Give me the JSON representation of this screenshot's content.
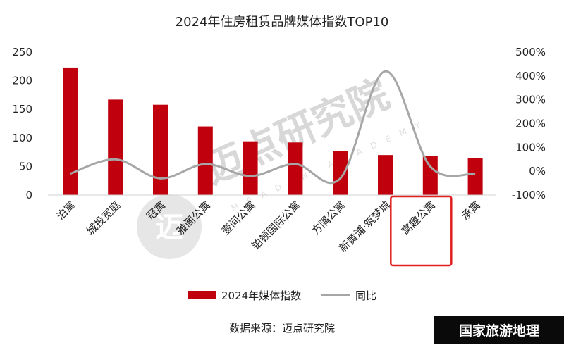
{
  "chart_data": {
    "type": "bar",
    "title": "2024年住房租赁品牌媒体指数TOP10",
    "categories": [
      "泊寓",
      "城投宽庭",
      "冠寓",
      "雅阁公寓",
      "壹间公寓",
      "铂顿国际公寓",
      "方隅公寓",
      "新黄浦·筑梦城",
      "窝趣公寓",
      "承寓"
    ],
    "series": [
      {
        "name": "2024年媒体指数",
        "type": "bar",
        "axis": "left",
        "color": "#c0000c",
        "values": [
          223,
          167,
          158,
          120,
          94,
          92,
          77,
          70,
          68,
          65
        ]
      },
      {
        "name": "同比",
        "type": "line",
        "axis": "right",
        "color": "#a6a6a6",
        "values": [
          -10,
          50,
          -30,
          30,
          -20,
          30,
          -30,
          420,
          20,
          -10
        ]
      }
    ],
    "left_axis": {
      "ylim": [
        0,
        250
      ],
      "ticks": [
        "0",
        "50",
        "100",
        "150",
        "200",
        "250"
      ]
    },
    "right_axis": {
      "ylim": [
        -100,
        500
      ],
      "ticks": [
        "-100%",
        "0%",
        "100%",
        "200%",
        "300%",
        "400%",
        "500%"
      ]
    },
    "grid": false,
    "legend_position": "bottom",
    "highlighted_category": "窝趣公寓",
    "highlight_color": "#e02020"
  },
  "source_text": "数据来源：迈点研究院",
  "watermark_text": "迈点研究院",
  "watermark_sub_text": "MEADIN ACADEMY",
  "watermark_logo_text": "迈",
  "brand_badge_text": "国家旅游地理"
}
